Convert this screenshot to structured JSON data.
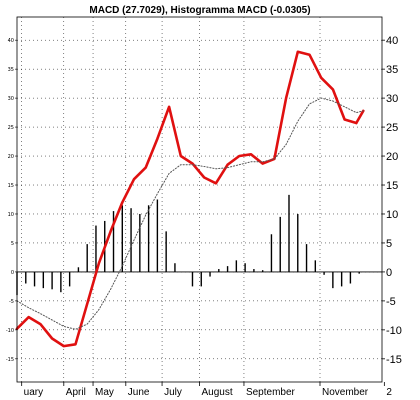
{
  "chart_data": {
    "type": "line",
    "title": "MACD (27.7029), Histogramma MACD (-0.0305)",
    "xlabel": "",
    "ylabel": "",
    "ylim": [
      -19,
      44
    ],
    "grid": true,
    "y_ticks_left": [
      -15,
      -10,
      -5,
      0,
      5,
      10,
      15,
      20,
      25,
      30,
      35,
      40
    ],
    "y_ticks_right": [
      -15,
      -10,
      -5,
      0,
      5,
      10,
      15,
      20,
      25,
      30,
      35,
      40
    ],
    "x_ticks": [
      {
        "label": "uary",
        "x": 0.4
      },
      {
        "label": "April",
        "x": 4.0
      },
      {
        "label": "May",
        "x": 6.5
      },
      {
        "label": "June",
        "x": 9.3
      },
      {
        "label": "July",
        "x": 12.4
      },
      {
        "label": "August",
        "x": 15.6
      },
      {
        "label": "September",
        "x": 19.4
      },
      {
        "label": "November",
        "x": 25.9
      },
      {
        "label": "2",
        "x": 31.4
      }
    ],
    "series": [
      {
        "color": "#e01010",
        "style": "solid-thick",
        "x": [
          0,
          1,
          2,
          3,
          4,
          5,
          6,
          7,
          8,
          9,
          10,
          11,
          12,
          13,
          14,
          15,
          16,
          17,
          18,
          19,
          20,
          21,
          22,
          23,
          24,
          25,
          26,
          27,
          28,
          29
        ],
        "values": [
          -9.8,
          -7.8,
          -9.0,
          -11.5,
          -12.8,
          -12.5,
          -5.5,
          1.5,
          7.0,
          12.0,
          16.0,
          18.0,
          23.0,
          28.5,
          20.0,
          18.7,
          16.3,
          15.3,
          18.5,
          20.0,
          20.3,
          18.7,
          19.5,
          30.0,
          38.0,
          37.5,
          33.5,
          31.5,
          26.3,
          25.7
        ]
      },
      {
        "color": "#e01010",
        "style": "solid-thick",
        "x": [
          29,
          29.6
        ],
        "values": [
          25.7,
          27.8
        ]
      },
      {
        "color": "#555555",
        "style": "dotted",
        "x": [
          0,
          1,
          2,
          3,
          4,
          5,
          6,
          7,
          8,
          9,
          10,
          11,
          12,
          13,
          14,
          15,
          16,
          17,
          18,
          19,
          20,
          21,
          22,
          23,
          24,
          25,
          26,
          27,
          28,
          29,
          29.6
        ],
        "values": [
          -5.0,
          -6.2,
          -7.2,
          -8.3,
          -9.4,
          -9.9,
          -9.0,
          -6.5,
          -3.0,
          1.0,
          5.5,
          9.8,
          13.5,
          17.0,
          18.5,
          18.5,
          18.2,
          17.8,
          18.0,
          18.5,
          19.0,
          19.0,
          19.5,
          22.0,
          26.0,
          29.0,
          30.0,
          29.5,
          28.5,
          27.5,
          27.8
        ]
      }
    ],
    "histogram": {
      "color": "#000000",
      "x": [
        0,
        0.75,
        1.5,
        2.25,
        3,
        3.75,
        4.5,
        5.25,
        6,
        6.75,
        7.5,
        8.25,
        9,
        9.75,
        10.5,
        11.25,
        12,
        12.75,
        13.5,
        14.25,
        15,
        15.75,
        16.5,
        17.25,
        18,
        18.75,
        19.5,
        20.25,
        21,
        21.75,
        22.5,
        23.25,
        24,
        24.75,
        25.5,
        26.25,
        27,
        27.75,
        28.5,
        29.25
      ],
      "values": [
        -4.0,
        -2.0,
        -2.5,
        -2.8,
        -3.0,
        -3.5,
        -2.5,
        0.8,
        4.8,
        8.0,
        8.8,
        10.5,
        11.5,
        11.0,
        10.0,
        11.5,
        12.5,
        7.0,
        1.5,
        0.0,
        -2.5,
        -2.5,
        -0.8,
        0.5,
        1.0,
        2.0,
        1.5,
        0.5,
        0.3,
        6.5,
        9.5,
        13.3,
        10.0,
        4.8,
        2.0,
        -0.5,
        -2.8,
        -2.5,
        -2.0,
        -0.3
      ]
    }
  }
}
